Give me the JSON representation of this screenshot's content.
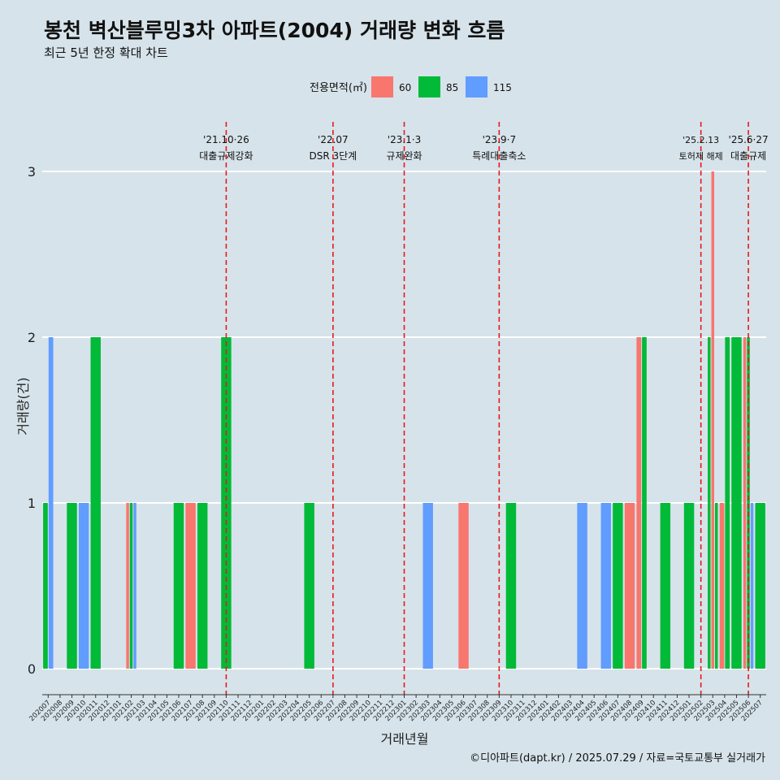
{
  "colors": {
    "60": "#f8766d",
    "85": "#00ba38",
    "115": "#619cff",
    "event": "#e8191b",
    "background": "#d6e3ea"
  },
  "chart_data": {
    "type": "bar",
    "title": "봉천 벽산블루밍3차 아파트(2004) 거래량 변화 흐름",
    "subtitle": "최근 5년 한정 확대 차트",
    "xlabel": "거래년월",
    "ylabel": "거래량(건)",
    "ylim": [
      0,
      3
    ],
    "y_ticks": [
      0,
      1,
      2,
      3
    ],
    "legend": {
      "title": "전용면적(㎡)",
      "position": "top",
      "items": [
        "60",
        "85",
        "115"
      ]
    },
    "source": "©디아파트(dapt.kr) / 2025.07.29 / 자료=국토교통부 실거래가",
    "categories": [
      "202007",
      "202008",
      "202009",
      "202010",
      "202011",
      "202012",
      "202101",
      "202102",
      "202103",
      "202104",
      "202105",
      "202106",
      "202107",
      "202108",
      "202109",
      "202110",
      "202111",
      "202112",
      "202201",
      "202202",
      "202203",
      "202204",
      "202205",
      "202206",
      "202207",
      "202208",
      "202209",
      "202210",
      "202211",
      "202212",
      "202301",
      "202302",
      "202303",
      "202304",
      "202305",
      "202306",
      "202307",
      "202308",
      "202309",
      "202310",
      "202311",
      "202312",
      "202401",
      "202402",
      "202403",
      "202404",
      "202405",
      "202406",
      "202407",
      "202408",
      "202409",
      "202410",
      "202411",
      "202412",
      "202501",
      "202502",
      "202503",
      "202504",
      "202505",
      "202506",
      "202507"
    ],
    "transactions": [
      {
        "month": "202007",
        "area": "85",
        "count": 1
      },
      {
        "month": "202007",
        "area": "115",
        "count": 2
      },
      {
        "month": "202009",
        "area": "85",
        "count": 1
      },
      {
        "month": "202010",
        "area": "115",
        "count": 1
      },
      {
        "month": "202011",
        "area": "85",
        "count": 2
      },
      {
        "month": "202102",
        "area": "60",
        "count": 1
      },
      {
        "month": "202102",
        "area": "85",
        "count": 1
      },
      {
        "month": "202102",
        "area": "115",
        "count": 1
      },
      {
        "month": "202106",
        "area": "85",
        "count": 1
      },
      {
        "month": "202107",
        "area": "60",
        "count": 1
      },
      {
        "month": "202108",
        "area": "85",
        "count": 1
      },
      {
        "month": "202110",
        "area": "85",
        "count": 2
      },
      {
        "month": "202205",
        "area": "85",
        "count": 1
      },
      {
        "month": "202303",
        "area": "115",
        "count": 1
      },
      {
        "month": "202306",
        "area": "60",
        "count": 1
      },
      {
        "month": "202310",
        "area": "85",
        "count": 1
      },
      {
        "month": "202404",
        "area": "115",
        "count": 1
      },
      {
        "month": "202406",
        "area": "115",
        "count": 1
      },
      {
        "month": "202407",
        "area": "85",
        "count": 1
      },
      {
        "month": "202408",
        "area": "60",
        "count": 1
      },
      {
        "month": "202409",
        "area": "60",
        "count": 2
      },
      {
        "month": "202409",
        "area": "85",
        "count": 2
      },
      {
        "month": "202411",
        "area": "85",
        "count": 1
      },
      {
        "month": "202501",
        "area": "85",
        "count": 1
      },
      {
        "month": "202503",
        "area": "85",
        "count": 2
      },
      {
        "month": "202503",
        "area": "60",
        "count": 3
      },
      {
        "month": "202503",
        "area": "85",
        "count": 1
      },
      {
        "month": "202504",
        "area": "60",
        "count": 1
      },
      {
        "month": "202504",
        "area": "85",
        "count": 2
      },
      {
        "month": "202505",
        "area": "85",
        "count": 2
      },
      {
        "month": "202506",
        "area": "60",
        "count": 2
      },
      {
        "month": "202506",
        "area": "85",
        "count": 2
      },
      {
        "month": "202506",
        "area": "115",
        "count": 1
      },
      {
        "month": "202507",
        "area": "85",
        "count": 1
      }
    ],
    "events": [
      {
        "month": "202110",
        "date": "'21.10·26",
        "label": "대출규제강화"
      },
      {
        "month": "202207",
        "date": "'22.07",
        "label": "DSR 3단계"
      },
      {
        "month": "202301",
        "date": "'23.1·3",
        "label": "규제완화"
      },
      {
        "month": "202309",
        "date": "'23.9·7",
        "label": "특례대출축소"
      },
      {
        "month": "202502",
        "date": "'25.2.13",
        "label": "토허제 해제"
      },
      {
        "month": "202506",
        "date": "'25.6·27",
        "label": "대출규제"
      }
    ]
  }
}
